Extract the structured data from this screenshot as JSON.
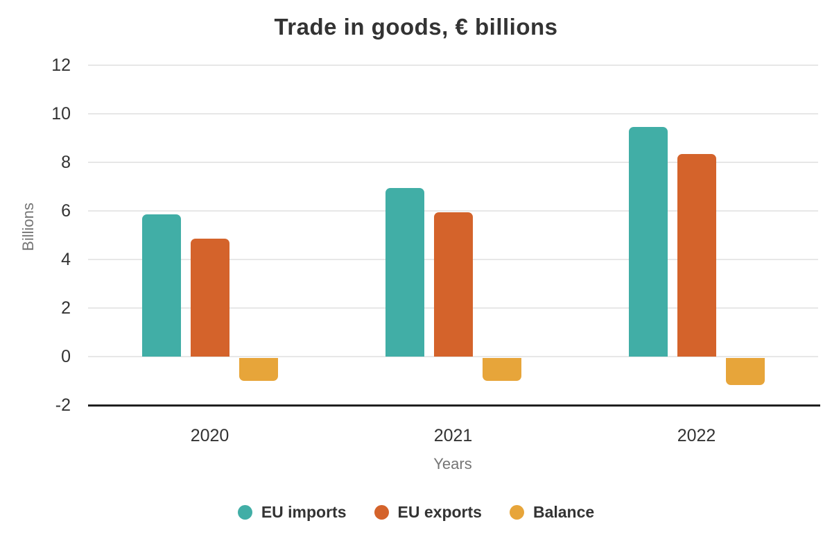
{
  "colors": {
    "imports": "#41AEA6",
    "exports": "#D4632B",
    "balance": "#E7A53A",
    "grid": "#E7E7E7",
    "axis": "#1F1F1F",
    "text_dark": "#333333",
    "text_gray": "#757575",
    "background": "#FFFFFF"
  },
  "chart_data": {
    "type": "bar",
    "title": "Trade in goods, € billions",
    "xlabel": "Years",
    "ylabel": "Billions",
    "categories": [
      "2020",
      "2021",
      "2022"
    ],
    "series": [
      {
        "name": "EU imports",
        "color": "#41AEA6",
        "values": [
          5.85,
          6.95,
          9.45
        ]
      },
      {
        "name": "EU exports",
        "color": "#D4632B",
        "values": [
          4.85,
          5.95,
          8.35
        ]
      },
      {
        "name": "Balance",
        "color": "#E7A53A",
        "values": [
          -0.95,
          -0.95,
          -1.1
        ]
      }
    ],
    "ylim": [
      -2,
      12
    ],
    "yticks": [
      12,
      10,
      8,
      6,
      4,
      2,
      0,
      -2
    ],
    "grid": true,
    "legend_position": "bottom"
  }
}
